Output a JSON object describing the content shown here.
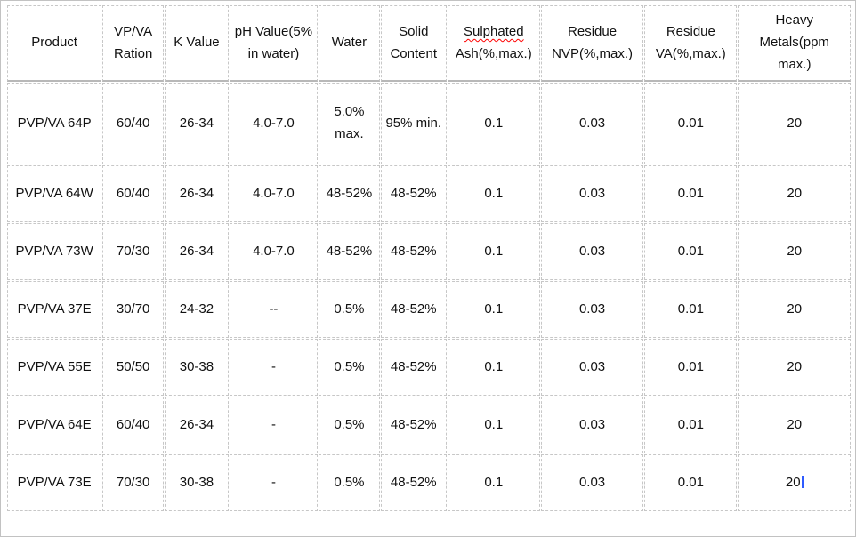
{
  "table": {
    "header": {
      "product": "Product",
      "vpva_ration": "VP/VA Ration",
      "k_value": "K Value",
      "ph_value": "pH Value(5% in water)",
      "water": "Water",
      "solid_content": "Solid Content",
      "sulphated_word": "Sulphated",
      "sulphated_rest": "Ash(%,max.)",
      "residue_nvp": "Residue NVP(%,max.)",
      "residue_va": "Residue VA(%,max.)",
      "heavy_metals": "Heavy Metals(ppm max.)"
    },
    "rows": [
      [
        "PVP/VA 64P",
        "60/40",
        "26-34",
        "4.0-7.0",
        "5.0% max.",
        "95% min.",
        "0.1",
        "0.03",
        "0.01",
        "20"
      ],
      [
        "PVP/VA 64W",
        "60/40",
        "26-34",
        "4.0-7.0",
        "48-52%",
        "48-52%",
        "0.1",
        "0.03",
        "0.01",
        "20"
      ],
      [
        "PVP/VA 73W",
        "70/30",
        "26-34",
        "4.0-7.0",
        "48-52%",
        "48-52%",
        "0.1",
        "0.03",
        "0.01",
        "20"
      ],
      [
        "PVP/VA 37E",
        "30/70",
        "24-32",
        "--",
        "0.5%",
        "48-52%",
        "0.1",
        "0.03",
        "0.01",
        "20"
      ],
      [
        "PVP/VA 55E",
        "50/50",
        "30-38",
        "-",
        "0.5%",
        "48-52%",
        "0.1",
        "0.03",
        "0.01",
        "20"
      ],
      [
        "PVP/VA 64E",
        "60/40",
        "26-34",
        "-",
        "0.5%",
        "48-52%",
        "0.1",
        "0.03",
        "0.01",
        "20"
      ],
      [
        "PVP/VA 73E",
        "70/30",
        "30-38",
        "-",
        "0.5%",
        "48-52%",
        "0.1",
        "0.03",
        "0.01",
        "20"
      ]
    ]
  },
  "colors": {
    "background": "#ffffff",
    "dashed_border": "#c7c7c7",
    "header_rule": "#b8b8b8",
    "text": "#111111",
    "spellcheck_underline": "#ff0000",
    "caret": "#2f5bff"
  }
}
